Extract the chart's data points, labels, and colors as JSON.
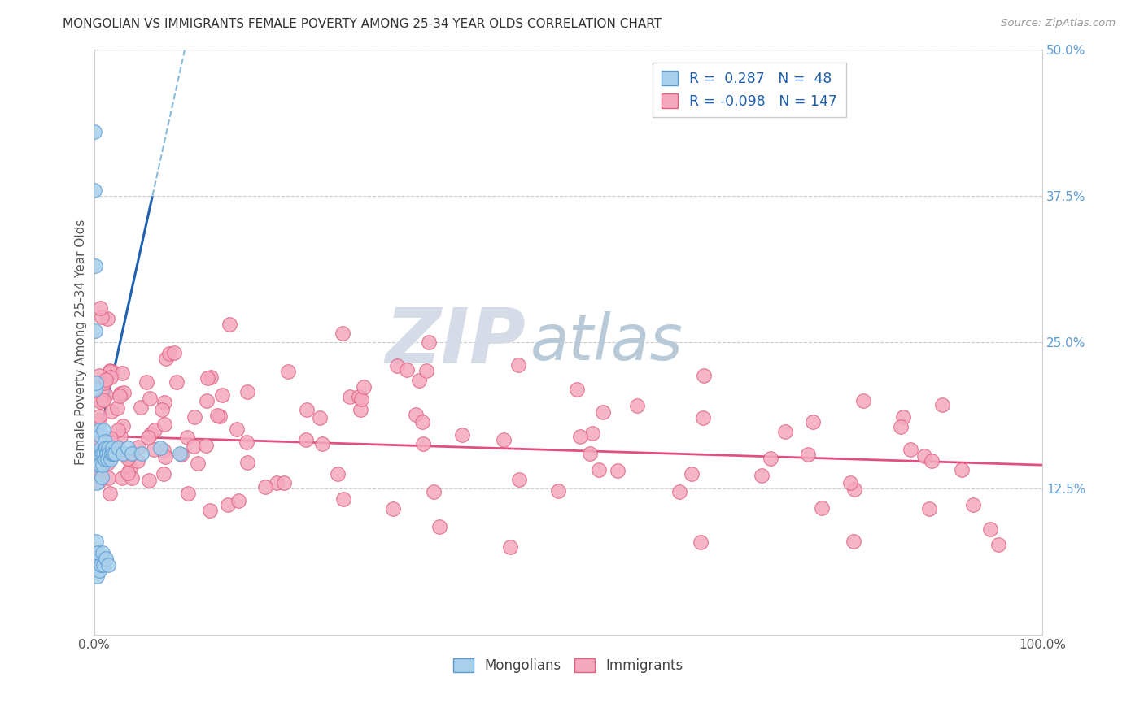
{
  "title": "MONGOLIAN VS IMMIGRANTS FEMALE POVERTY AMONG 25-34 YEAR OLDS CORRELATION CHART",
  "source": "Source: ZipAtlas.com",
  "ylabel": "Female Poverty Among 25-34 Year Olds",
  "xlim": [
    0.0,
    1.0
  ],
  "ylim": [
    0.0,
    0.5
  ],
  "legend_R_mongolian": "0.287",
  "legend_N_mongolian": "48",
  "legend_R_immigrant": "-0.098",
  "legend_N_immigrant": "147",
  "mongolian_fill": "#a8d0eb",
  "mongolian_edge": "#5b9bd5",
  "immigrant_fill": "#f4a8be",
  "immigrant_edge": "#e06080",
  "trend_mongolian_solid": "#2060b0",
  "trend_mongolian_dash": "#88bbdd",
  "trend_immigrant": "#e05080",
  "grid_color": "#cccccc",
  "ytick_color": "#5b9bd5",
  "watermark_zip_color": "#d0d8e8",
  "watermark_atlas_color": "#b8c8d8"
}
